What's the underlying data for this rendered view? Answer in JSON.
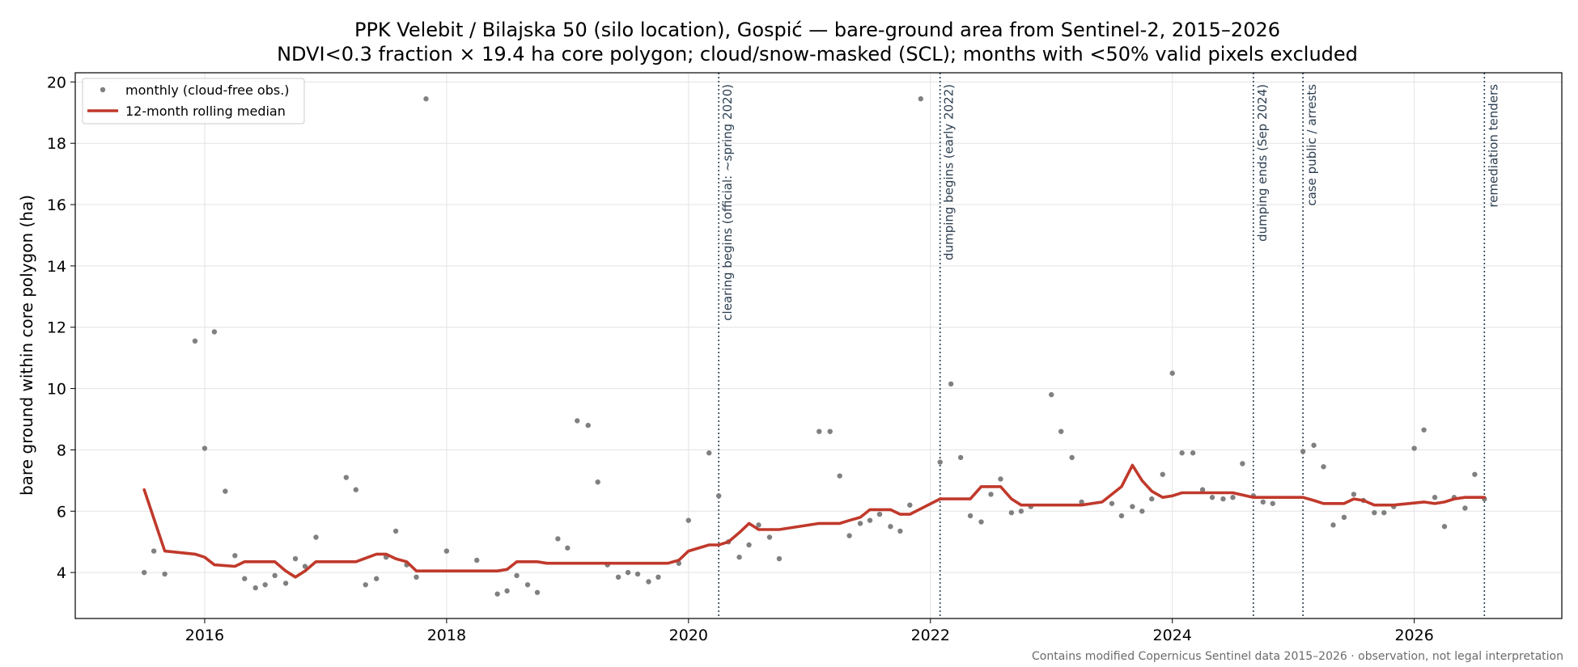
{
  "chart_data": {
    "type": "line",
    "title": "PPK Velebit / Bilajska 50 (silo location), Gospić — bare-ground area from Sentinel-2, 2015–2026",
    "subtitle": "NDVI<0.3 fraction × 19.4 ha core polygon; cloud/snow-masked (SCL); months with <50% valid pixels excluded",
    "xlabel": "",
    "ylabel": "bare ground within core polygon (ha)",
    "xlim": [
      2014.93,
      2027.22
    ],
    "ylim": [
      2.5,
      20.3
    ],
    "x_ticks": [
      2016,
      2018,
      2020,
      2022,
      2024,
      2026
    ],
    "x_tick_labels": [
      "2016",
      "2018",
      "2020",
      "2022",
      "2024",
      "2026"
    ],
    "y_ticks": [
      4,
      6,
      8,
      10,
      12,
      14,
      16,
      18,
      20
    ],
    "y_tick_labels": [
      "4",
      "6",
      "8",
      "10",
      "12",
      "14",
      "16",
      "18",
      "20"
    ],
    "grid": true,
    "legend_position": "top-left",
    "colors": {
      "monthly": "#808080",
      "median": "#c0392b",
      "event": "#2c3e50"
    },
    "series": [
      {
        "name": "monthly (cloud-free obs.)",
        "style": "points",
        "x": [
          2015.5,
          2015.58,
          2015.67,
          2015.92,
          2016.0,
          2016.08,
          2016.17,
          2016.25,
          2016.33,
          2016.42,
          2016.5,
          2016.58,
          2016.67,
          2016.75,
          2016.83,
          2016.92,
          2017.17,
          2017.25,
          2017.33,
          2017.42,
          2017.5,
          2017.58,
          2017.67,
          2017.75,
          2017.83,
          2018.0,
          2018.25,
          2018.42,
          2018.5,
          2018.58,
          2018.67,
          2018.75,
          2018.92,
          2019.0,
          2019.08,
          2019.17,
          2019.25,
          2019.33,
          2019.42,
          2019.5,
          2019.58,
          2019.67,
          2019.75,
          2019.92,
          2020.0,
          2020.17,
          2020.25,
          2020.33,
          2020.42,
          2020.5,
          2020.58,
          2020.67,
          2020.75,
          2021.08,
          2021.17,
          2021.25,
          2021.33,
          2021.42,
          2021.5,
          2021.58,
          2021.67,
          2021.75,
          2021.83,
          2021.92,
          2022.08,
          2022.17,
          2022.25,
          2022.33,
          2022.42,
          2022.5,
          2022.58,
          2022.67,
          2022.75,
          2022.83,
          2023.0,
          2023.08,
          2023.17,
          2023.25,
          2023.5,
          2023.58,
          2023.67,
          2023.75,
          2023.83,
          2023.92,
          2024.0,
          2024.08,
          2024.17,
          2024.25,
          2024.33,
          2024.42,
          2024.5,
          2024.58,
          2024.67,
          2024.75,
          2024.83,
          2025.08,
          2025.17,
          2025.25,
          2025.33,
          2025.42,
          2025.5,
          2025.58,
          2025.67,
          2025.75,
          2025.83,
          2026.0,
          2026.08,
          2026.17,
          2026.25,
          2026.33,
          2026.42,
          2026.5,
          2026.58
        ],
        "y": [
          4.0,
          4.7,
          3.95,
          11.55,
          8.05,
          11.85,
          6.65,
          4.55,
          3.8,
          3.5,
          3.6,
          3.9,
          3.65,
          4.45,
          4.2,
          5.15,
          7.1,
          6.7,
          3.6,
          3.8,
          4.5,
          5.35,
          4.25,
          3.85,
          19.45,
          4.7,
          4.4,
          3.3,
          3.4,
          3.9,
          3.6,
          3.35,
          5.1,
          4.8,
          8.95,
          8.8,
          6.95,
          4.25,
          3.85,
          4.0,
          3.95,
          3.7,
          3.85,
          4.3,
          5.7,
          7.9,
          6.5,
          5.0,
          4.5,
          4.9,
          5.55,
          5.15,
          4.45,
          8.6,
          8.6,
          7.15,
          5.2,
          5.6,
          5.7,
          5.9,
          5.5,
          5.35,
          6.2,
          19.45,
          7.6,
          10.15,
          7.75,
          5.85,
          5.65,
          6.55,
          7.05,
          5.95,
          6.0,
          6.15,
          9.8,
          8.6,
          7.75,
          6.3,
          6.25,
          5.85,
          6.15,
          6.0,
          6.4,
          7.2,
          10.5,
          7.9,
          7.9,
          6.7,
          6.45,
          6.4,
          6.45,
          7.55,
          6.5,
          6.3,
          6.25,
          7.95,
          8.15,
          7.45,
          5.55,
          5.8,
          6.55,
          6.35,
          5.95,
          5.95,
          6.15,
          8.05,
          8.65,
          6.45,
          5.5,
          6.45,
          6.1,
          7.2,
          6.4
        ]
      },
      {
        "name": "12-month rolling median",
        "style": "line",
        "x": [
          2015.5,
          2015.67,
          2015.92,
          2016.0,
          2016.08,
          2016.25,
          2016.33,
          2016.42,
          2016.58,
          2016.67,
          2016.75,
          2016.83,
          2016.92,
          2017.25,
          2017.42,
          2017.5,
          2017.58,
          2017.67,
          2017.75,
          2018.42,
          2018.5,
          2018.58,
          2018.75,
          2018.83,
          2018.92,
          2019.83,
          2019.92,
          2020.0,
          2020.17,
          2020.25,
          2020.33,
          2020.42,
          2020.5,
          2020.58,
          2020.75,
          2021.08,
          2021.25,
          2021.33,
          2021.42,
          2021.5,
          2021.67,
          2021.75,
          2021.83,
          2022.08,
          2022.33,
          2022.42,
          2022.58,
          2022.67,
          2022.75,
          2023.0,
          2023.25,
          2023.42,
          2023.58,
          2023.67,
          2023.75,
          2023.83,
          2023.92,
          2024.0,
          2024.08,
          2024.17,
          2024.33,
          2024.5,
          2024.67,
          2024.75,
          2024.83,
          2025.08,
          2025.17,
          2025.25,
          2025.42,
          2025.5,
          2025.58,
          2025.67,
          2025.83,
          2026.08,
          2026.17,
          2026.25,
          2026.33,
          2026.42,
          2026.58
        ],
        "y": [
          6.7,
          4.7,
          4.6,
          4.5,
          4.25,
          4.2,
          4.35,
          4.35,
          4.35,
          4.05,
          3.85,
          4.05,
          4.35,
          4.35,
          4.6,
          4.6,
          4.45,
          4.35,
          4.05,
          4.05,
          4.1,
          4.35,
          4.35,
          4.3,
          4.3,
          4.3,
          4.4,
          4.7,
          4.9,
          4.9,
          5.0,
          5.3,
          5.6,
          5.4,
          5.4,
          5.6,
          5.6,
          5.7,
          5.8,
          6.05,
          6.05,
          5.9,
          5.9,
          6.4,
          6.4,
          6.8,
          6.8,
          6.4,
          6.2,
          6.2,
          6.2,
          6.3,
          6.8,
          7.5,
          7.0,
          6.65,
          6.45,
          6.5,
          6.6,
          6.6,
          6.6,
          6.6,
          6.45,
          6.45,
          6.45,
          6.45,
          6.35,
          6.25,
          6.25,
          6.4,
          6.35,
          6.2,
          6.2,
          6.3,
          6.25,
          6.3,
          6.4,
          6.45,
          6.45
        ]
      }
    ],
    "events": [
      {
        "x": 2020.25,
        "label": "clearing begins (official: ~spring 2020)"
      },
      {
        "x": 2022.08,
        "label": "dumping begins (early 2022)"
      },
      {
        "x": 2024.67,
        "label": "dumping ends (Sep 2024)"
      },
      {
        "x": 2025.08,
        "label": "case public / arrests"
      },
      {
        "x": 2026.58,
        "label": "remediation tenders"
      }
    ],
    "footnote": "Contains modified Copernicus Sentinel data 2015–2026 · observation, not legal interpretation"
  }
}
